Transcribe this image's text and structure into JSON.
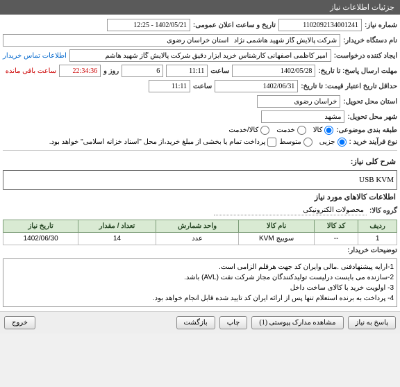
{
  "header": {
    "title": "جزئیات اطلاعات نیاز"
  },
  "fields": {
    "need_no_lbl": "شماره نیاز:",
    "need_no": "1102092134001241",
    "announce_lbl": "تاریخ و ساعت اعلان عمومی:",
    "announce": "1402/05/21 - 12:25",
    "buyer_org_lbl": "نام دستگاه خریدار:",
    "buyer_org": "شرکت پالایش گاز شهید هاشمی نژاد   استان خراسان رضوی",
    "creator_lbl": "ایجاد کننده درخواست:",
    "creator": "امیر کاظمی اصفهانی کارشناس خرید ابزار دقیق شرکت پالایش گاز شهید هاشم",
    "contact_link": "اطلاعات تماس خریدار",
    "deadline_lbl": "مهلت ارسال پاسخ: تا تاریخ:",
    "deadline_date": "1402/05/28",
    "time_lbl": "ساعت",
    "deadline_time": "11:11",
    "day_lbl": "روز و",
    "day_val": "6",
    "countdown": "22:34:36",
    "remain_lbl": "ساعت باقی مانده",
    "price_valid_lbl": "حداقل تاریخ اعتبار قیمت: تا تاریخ:",
    "price_valid_date": "1402/06/31",
    "price_valid_time": "11:11",
    "province_lbl": "استان محل تحویل:",
    "province": "خراسان رضوی",
    "city_lbl": "شهر محل تحویل:",
    "city": "مشهد",
    "class_lbl": "طبقه بندی موضوعی:",
    "class_goods": "کالا",
    "class_service": "خدمت",
    "class_both": "کالا/خدمت",
    "process_lbl": "نوع فرآیند خرید :",
    "proc_small": "جزیی",
    "proc_medium": "متوسط",
    "pay_note": "پرداخت تمام یا بخشی از مبلغ خرید،از محل \"اسناد خزانه اسلامی\" خواهد بود.",
    "desc_lbl": "شرح کلی نیاز:",
    "desc_val": "USB KVM",
    "items_section": "اطلاعات کالاهای مورد نیاز",
    "group_lbl": "گروه کالا:",
    "group_val": "محصولات الکترونیکی",
    "buyer_notes_lbl": "توضیحات خریدار:",
    "buyer_notes": "1-ارایه پیشنهادفنی .مالی وایران کد جهت هرقلم الزامی است.\n2-سازنده می بایست درلیست تولیدکنندگان مجاز شرکت نفت (AVL)  باشد.\n3- اولویت خرید با کالای ساخت داخل\n4- پرداخت به برنده استعلام تنها پس از ارائه ایران کد تایید شده قابل انجام خواهد بود."
  },
  "table": {
    "cols": {
      "row": "ردیف",
      "code": "کد کالا",
      "name": "نام کالا",
      "unit": "واحد شمارش",
      "qty": "تعداد / مقدار",
      "date": "تاریخ نیاز"
    },
    "rows": [
      {
        "row": "1",
        "code": "--",
        "name": "سوییچ KVM",
        "unit": "عدد",
        "qty": "14",
        "date": "1402/06/30"
      }
    ]
  },
  "buttons": {
    "respond": "پاسخ به نیاز",
    "attachments": "مشاهده مدارک پیوستی (1)",
    "print": "چاپ",
    "back": "بازگشت",
    "exit": "خروج"
  },
  "colors": {
    "header_bg": "#5a5a5a",
    "th_bg": "#d9ead3",
    "th_border": "#7a9b76",
    "link": "#0066cc",
    "red": "#cc0000"
  }
}
